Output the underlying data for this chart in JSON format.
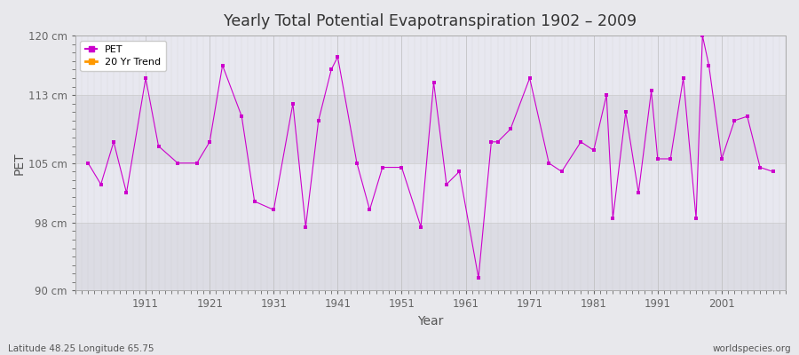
{
  "title": "Yearly Total Potential Evapotranspiration 1902 – 2009",
  "xlabel": "Year",
  "ylabel": "PET",
  "bottom_left_label": "Latitude 48.25 Longitude 65.75",
  "bottom_right_label": "worldspecies.org",
  "ylim": [
    90,
    120
  ],
  "ytick_labels": [
    "90 cm",
    "98 cm",
    "105 cm",
    "113 cm",
    "120 cm"
  ],
  "ytick_values": [
    90,
    98,
    105,
    113,
    120
  ],
  "xtick_values": [
    1911,
    1921,
    1931,
    1941,
    1951,
    1961,
    1971,
    1981,
    1991,
    2001
  ],
  "pet_color": "#cc00cc",
  "trend_color": "#ff9900",
  "fig_bg": "#e8e8ec",
  "plot_bg": "#e8e8ec",
  "years": [
    1902,
    1904,
    1906,
    1908,
    1911,
    1913,
    1916,
    1919,
    1921,
    1923,
    1926,
    1928,
    1931,
    1934,
    1936,
    1938,
    1940,
    1941,
    1944,
    1946,
    1948,
    1951,
    1954,
    1956,
    1958,
    1960,
    1963,
    1965,
    1966,
    1968,
    1971,
    1974,
    1976,
    1979,
    1981,
    1983,
    1984,
    1986,
    1988,
    1990,
    1991,
    1993,
    1995,
    1997,
    1998,
    1999,
    2001,
    2003,
    2005,
    2007,
    2009
  ],
  "pet_values": [
    105.0,
    102.5,
    107.5,
    101.5,
    115.0,
    107.0,
    105.0,
    105.0,
    107.5,
    116.5,
    110.5,
    100.5,
    99.5,
    112.0,
    97.5,
    110.0,
    116.0,
    117.5,
    105.0,
    99.5,
    104.5,
    104.5,
    97.5,
    114.5,
    102.5,
    104.0,
    91.5,
    107.5,
    107.5,
    109.0,
    115.0,
    105.0,
    104.0,
    107.5,
    106.5,
    113.0,
    98.5,
    111.0,
    101.5,
    113.5,
    105.5,
    105.5,
    115.0,
    98.5,
    120.0,
    116.5,
    105.5,
    110.0,
    110.5,
    104.5,
    104.0
  ],
  "line_segments": [
    [
      1902,
      1904
    ],
    [
      1906,
      1908
    ],
    [
      1911,
      1913
    ],
    [
      1921,
      1923
    ],
    [
      1931,
      1934
    ],
    [
      1936,
      1940
    ],
    [
      1941,
      1944
    ],
    [
      1946,
      1948
    ],
    [
      1963,
      1966
    ],
    [
      1981,
      1984
    ],
    [
      1986,
      1990
    ],
    [
      1991,
      1993
    ],
    [
      1995,
      1999
    ],
    [
      2001,
      2003
    ],
    [
      2005,
      2009
    ]
  ]
}
